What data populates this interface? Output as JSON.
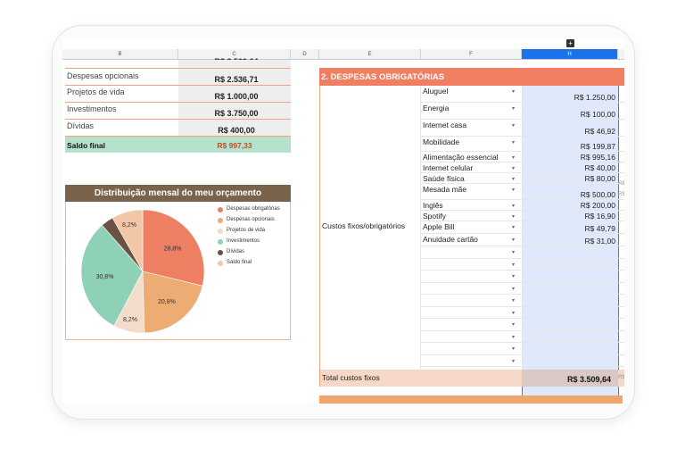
{
  "columns": [
    "B",
    "C",
    "D",
    "E",
    "F",
    "H"
  ],
  "expand_button": "+",
  "summary_top_cutoff": "R$ 3.509,64",
  "summary": [
    {
      "label": "Despesas opcionais",
      "value": "R$ 2.536,71"
    },
    {
      "label": "Projetos de vida",
      "value": "R$ 1.000,00"
    },
    {
      "label": "Investimentos",
      "value": "R$ 3.750,00"
    },
    {
      "label": "Dívidas",
      "value": "R$ 400,00"
    }
  ],
  "saldo": {
    "label": "Saldo final",
    "value": "R$ 997,33"
  },
  "chart_data": {
    "type": "pie",
    "title": "Distribuição mensal do meu orçamento",
    "labels": [
      "Despesas obrigatórias",
      "Despesas opcionais",
      "Projetos de vida",
      "Investimentos",
      "Dívidas",
      "Saldo final"
    ],
    "values": [
      28.8,
      20.8,
      8.2,
      30.8,
      3.3,
      8.2
    ],
    "data_labels": [
      "28,8%",
      "20,8%",
      "8,2%",
      "30,8%",
      "",
      "8,2%"
    ],
    "colors": [
      "#ee7f63",
      "#eeac75",
      "#f4dccb",
      "#8fd1b7",
      "#6b5243",
      "#f2c7a7"
    ],
    "legend_position": "right"
  },
  "section": {
    "title": "2. DESPESAS OBRIGATÓRIAS",
    "category": "Custos fixos/obrigatórios",
    "items": [
      {
        "name": "Aluguel",
        "amount": "R$ 1.250,00"
      },
      {
        "name": "Energia",
        "amount": "R$ 100,00"
      },
      {
        "name": "Internet casa",
        "amount": "R$ 46,92"
      },
      {
        "name": "Mobilidade",
        "amount": "R$ 199,87"
      },
      {
        "name": "Alimentação essencial",
        "amount": "R$ 995,16"
      },
      {
        "name": "Internet celular",
        "amount": "R$ 40,00"
      },
      {
        "name": "Saúde física",
        "amount": "R$ 80,00"
      },
      {
        "name": "Mesada mãe",
        "amount": "R$ 500,00"
      },
      {
        "name": "Inglês",
        "amount": "R$ 200,00"
      },
      {
        "name": "Spotify",
        "amount": "R$ 16,90"
      },
      {
        "name": "Apple Bill",
        "amount": "R$ 49,79"
      },
      {
        "name": "Anuidade cartão",
        "amount": "R$ 31,00"
      }
    ],
    "overflow_marks": [
      "R$",
      "R$",
      "R$"
    ],
    "total_label": "Total custos fixos",
    "total_value": "R$ 3.509,64",
    "dropdown_glyph": "▾"
  }
}
